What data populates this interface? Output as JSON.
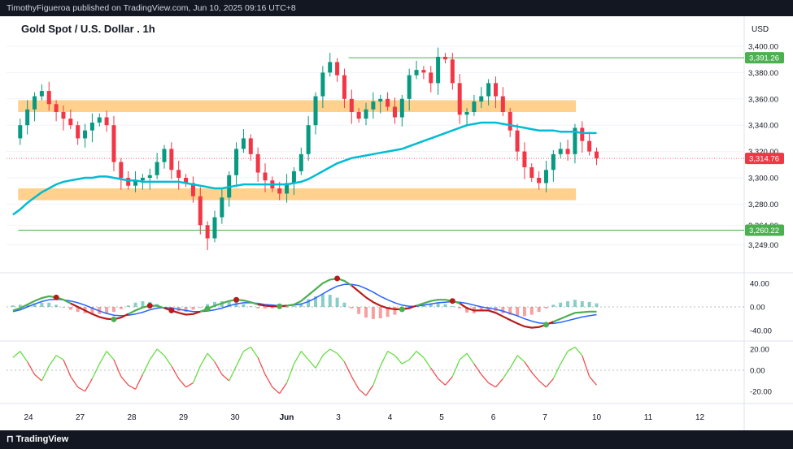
{
  "header": {
    "publisher_text": "TimothyFigueroa published on TradingView.com, Jun 10, 2025 09:16 UTC+8"
  },
  "footer": {
    "brand": "TradingView"
  },
  "chart_data": {
    "type": "line",
    "title": "Gold Spot / U.S. Dollar . 1h",
    "currency": "USD",
    "main": {
      "price_ticks": [
        {
          "value": 3400,
          "label": "3,400.00"
        },
        {
          "value": 3380,
          "label": "3,380.00"
        },
        {
          "value": 3360,
          "label": "3,360.00"
        },
        {
          "value": 3340,
          "label": "3,340.00"
        },
        {
          "value": 3320,
          "label": "3,320.00"
        },
        {
          "value": 3300,
          "label": "3,300.00"
        },
        {
          "value": 3280,
          "label": "3,280.00"
        },
        {
          "value": 3264,
          "label": "3,264.00"
        },
        {
          "value": 3249,
          "label": "3,249.00"
        }
      ],
      "price_badges": [
        {
          "value": 3391.26,
          "label": "3,391.26",
          "color": "#4caf50"
        },
        {
          "value": 3314.76,
          "label": "3,314.76",
          "color": "#f23645"
        },
        {
          "value": 3260.22,
          "label": "3,260.22",
          "color": "#4caf50"
        }
      ],
      "zones": [
        {
          "name": "resistance",
          "low": 3350,
          "high": 3359,
          "x_start": -0.2,
          "x_end": 10.6,
          "color": "#ffcc80"
        },
        {
          "name": "support",
          "low": 3283,
          "high": 3292,
          "x_start": -0.2,
          "x_end": 10.6,
          "color": "#ffcc80"
        }
      ],
      "levels": [
        {
          "value": 3391.26,
          "x_start": 6.2,
          "x_end": 14.5,
          "color": "#4caf50"
        },
        {
          "value": 3260.22,
          "x_start": -0.2,
          "x_end": 14.5,
          "color": "#4caf50"
        }
      ],
      "current_price": 3314.76,
      "close_series": [
        3330,
        3340,
        3352,
        3362,
        3366,
        3356,
        3350,
        3345,
        3340,
        3330,
        3336,
        3342,
        3346,
        3340,
        3312,
        3300,
        3294,
        3298,
        3300,
        3302,
        3312,
        3322,
        3306,
        3300,
        3296,
        3286,
        3264,
        3254,
        3270,
        3285,
        3302,
        3322,
        3330,
        3318,
        3304,
        3298,
        3292,
        3288,
        3296,
        3305,
        3318,
        3340,
        3362,
        3380,
        3388,
        3378,
        3360,
        3350,
        3345,
        3352,
        3358,
        3360,
        3354,
        3346,
        3360,
        3378,
        3382,
        3380,
        3372,
        3392,
        3390,
        3372,
        3348,
        3350,
        3358,
        3362,
        3372,
        3362,
        3350,
        3336,
        3320,
        3308,
        3300,
        3296,
        3306,
        3318,
        3322,
        3318,
        3338,
        3328,
        3320,
        3314.76
      ],
      "ma_series": [
        3272,
        3276,
        3281,
        3285,
        3289,
        3292,
        3295,
        3297,
        3298,
        3299,
        3300,
        3300,
        3301,
        3301,
        3300,
        3299,
        3298,
        3298,
        3297,
        3297,
        3297,
        3297,
        3297,
        3297,
        3296,
        3295,
        3294,
        3293,
        3292,
        3292,
        3293,
        3294,
        3295,
        3295,
        3295,
        3295,
        3295,
        3295,
        3295,
        3296,
        3297,
        3299,
        3302,
        3305,
        3308,
        3311,
        3313,
        3315,
        3316,
        3317,
        3318,
        3319,
        3320,
        3321,
        3322,
        3324,
        3326,
        3328,
        3330,
        3332,
        3334,
        3336,
        3338,
        3340,
        3341,
        3342,
        3342,
        3342,
        3341,
        3340,
        3339,
        3338,
        3337,
        3336,
        3336,
        3336,
        3335,
        3335,
        3335,
        3334,
        3334,
        3334
      ]
    },
    "x_axis": {
      "ticks": [
        {
          "pos": 0,
          "label": "24"
        },
        {
          "pos": 1,
          "label": "27"
        },
        {
          "pos": 2,
          "label": "28"
        },
        {
          "pos": 3,
          "label": "29"
        },
        {
          "pos": 4,
          "label": "30"
        },
        {
          "pos": 5,
          "label": "Jun"
        },
        {
          "pos": 6,
          "label": "3"
        },
        {
          "pos": 7,
          "label": "4"
        },
        {
          "pos": 8,
          "label": "5"
        },
        {
          "pos": 9,
          "label": "6"
        },
        {
          "pos": 10,
          "label": "7"
        },
        {
          "pos": 11,
          "label": "10"
        },
        {
          "pos": 12,
          "label": "11"
        },
        {
          "pos": 13,
          "label": "12"
        }
      ]
    },
    "macd": {
      "ticks": [
        {
          "value": 40,
          "label": "40.00"
        },
        {
          "value": 0,
          "label": "0.00"
        },
        {
          "value": -40,
          "label": "-40.00"
        }
      ],
      "series_fast": [
        -6,
        -2,
        4,
        10,
        15,
        18,
        16,
        12,
        6,
        0,
        -6,
        -12,
        -17,
        -20,
        -21,
        -18,
        -12,
        -6,
        -1,
        2,
        2,
        -2,
        -6,
        -10,
        -13,
        -12,
        -8,
        -3,
        2,
        6,
        10,
        12,
        11,
        8,
        4,
        2,
        1,
        1,
        2,
        4,
        10,
        20,
        30,
        40,
        46,
        48,
        44,
        36,
        26,
        16,
        8,
        2,
        -2,
        -4,
        -4,
        -2,
        2,
        6,
        10,
        12,
        12,
        10,
        6,
        -2,
        -6,
        -6,
        -6,
        -10,
        -16,
        -22,
        -28,
        -33,
        -35,
        -34,
        -30,
        -25,
        -20,
        -15,
        -10,
        -9,
        -8,
        -8
      ],
      "series_slow": [
        -8,
        -5,
        0,
        5,
        9,
        12,
        13,
        12,
        10,
        7,
        3,
        -2,
        -7,
        -11,
        -14,
        -15,
        -14,
        -12,
        -9,
        -5,
        -2,
        -1,
        -2,
        -4,
        -6,
        -8,
        -8,
        -7,
        -5,
        -2,
        2,
        5,
        7,
        7,
        6,
        4,
        3,
        2,
        2,
        3,
        5,
        9,
        15,
        22,
        29,
        35,
        38,
        38,
        36,
        31,
        25,
        18,
        12,
        7,
        3,
        1,
        1,
        3,
        5,
        7,
        8,
        9,
        8,
        6,
        3,
        0,
        -2,
        -4,
        -7,
        -11,
        -15,
        -20,
        -24,
        -27,
        -28,
        -28,
        -26,
        -23,
        -20,
        -17,
        -15,
        -13
      ],
      "markers": [
        {
          "i": 6,
          "type": "bearish",
          "color": "#b71c1c"
        },
        {
          "i": 14,
          "type": "bullish",
          "color": "#4caf50"
        },
        {
          "i": 19,
          "type": "bearish",
          "color": "#b71c1c"
        },
        {
          "i": 22,
          "type": "bearish",
          "color": "#b71c1c"
        },
        {
          "i": 27,
          "type": "bullish",
          "color": "#4caf50"
        },
        {
          "i": 31,
          "type": "bearish",
          "color": "#b71c1c"
        },
        {
          "i": 37,
          "type": "bullish",
          "color": "#4caf50"
        },
        {
          "i": 45,
          "type": "bearish",
          "color": "#b71c1c"
        },
        {
          "i": 54,
          "type": "bullish",
          "color": "#4caf50"
        },
        {
          "i": 61,
          "type": "bearish",
          "color": "#b71c1c"
        },
        {
          "i": 74,
          "type": "bullish",
          "color": "#4caf50"
        }
      ]
    },
    "oscillator": {
      "ticks": [
        {
          "value": 20,
          "label": "20.00"
        },
        {
          "value": 0,
          "label": "0.00"
        },
        {
          "value": -20,
          "label": "-20.00"
        }
      ],
      "series": [
        12,
        18,
        8,
        -4,
        -10,
        4,
        14,
        10,
        -6,
        -16,
        -20,
        -8,
        6,
        18,
        10,
        -6,
        -14,
        -18,
        -4,
        10,
        20,
        14,
        4,
        -8,
        -16,
        -12,
        4,
        16,
        8,
        -4,
        -10,
        4,
        18,
        22,
        12,
        -4,
        -16,
        -22,
        -12,
        6,
        18,
        10,
        2,
        14,
        20,
        16,
        8,
        -6,
        -18,
        -24,
        -14,
        4,
        18,
        14,
        6,
        10,
        18,
        12,
        2,
        -8,
        -14,
        -6,
        10,
        16,
        6,
        -4,
        -12,
        -16,
        -8,
        2,
        14,
        8,
        -2,
        -10,
        -16,
        -8,
        6,
        18,
        22,
        14,
        -6,
        -14
      ]
    }
  }
}
